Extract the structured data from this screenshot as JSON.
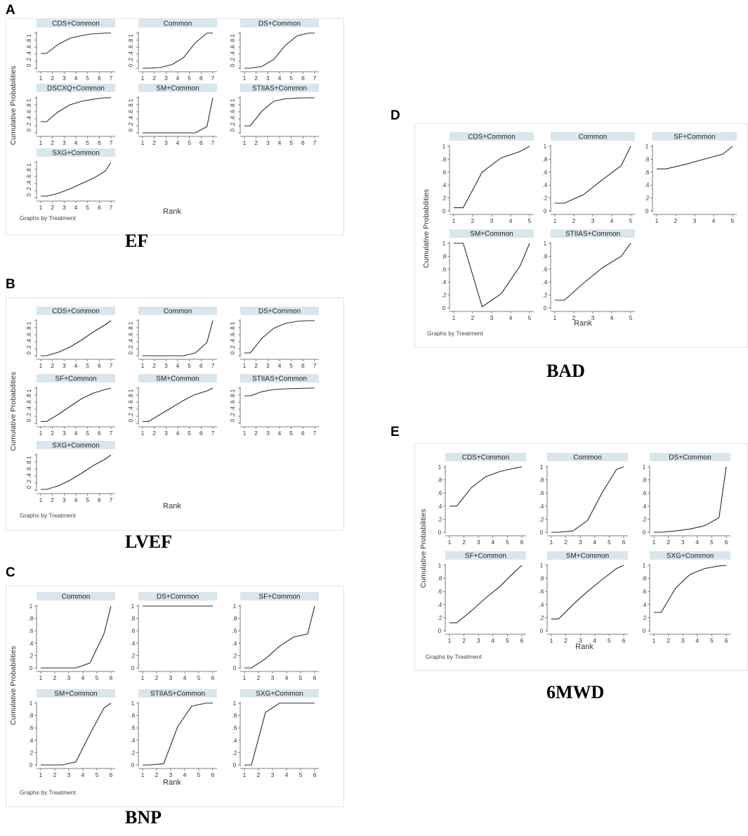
{
  "figure": {
    "shared": {
      "ylabel": "Cumulative Probabilities",
      "xlabel": "Rank",
      "note": "Graphs by Treatment",
      "strip_color": "#d9e6ec",
      "line_color": "#2b2b2b"
    },
    "panels": [
      {
        "letter": "A",
        "caption": "EF",
        "yticks_style": "compact",
        "yticks_label": "0 .2 .4 .6 .8 1",
        "xticks": [
          1,
          2,
          3,
          4,
          5,
          6,
          7
        ],
        "chart_data": {
          "type": "line",
          "x": [
            1,
            1.5,
            2.5,
            3.5,
            4.5,
            5.5,
            6.5,
            7
          ],
          "ylim": [
            0,
            1
          ],
          "series": [
            {
              "name": "CDS+Common",
              "values": [
                0.42,
                0.42,
                0.68,
                0.85,
                0.93,
                0.98,
                1.0,
                1.0
              ]
            },
            {
              "name": "Common",
              "values": [
                0.0,
                0.0,
                0.02,
                0.1,
                0.3,
                0.72,
                1.0,
                1.0
              ]
            },
            {
              "name": "DS+Common",
              "values": [
                0.0,
                0.0,
                0.05,
                0.25,
                0.65,
                0.92,
                1.0,
                1.0
              ]
            },
            {
              "name": "DSCXQ+Common",
              "values": [
                0.32,
                0.32,
                0.6,
                0.8,
                0.9,
                0.96,
                1.0,
                1.0
              ]
            },
            {
              "name": "SM+Common",
              "values": [
                0.0,
                0.0,
                0.0,
                0.0,
                0.0,
                0.0,
                0.18,
                1.0
              ]
            },
            {
              "name": "STIIAS+Common",
              "values": [
                0.2,
                0.2,
                0.62,
                0.9,
                0.97,
                0.99,
                1.0,
                1.0
              ]
            },
            {
              "name": "SXG+Common",
              "values": [
                0.04,
                0.04,
                0.12,
                0.25,
                0.4,
                0.55,
                0.75,
                1.0
              ]
            }
          ]
        }
      },
      {
        "letter": "B",
        "caption": "LVEF",
        "yticks_style": "compact",
        "yticks_label": "0 .2 .4 .6 .8 1",
        "xticks": [
          1,
          2,
          3,
          4,
          5,
          6,
          7
        ],
        "chart_data": {
          "type": "line",
          "x": [
            1,
            1.5,
            2.5,
            3.5,
            4.5,
            5.5,
            6.5,
            7
          ],
          "ylim": [
            0,
            1
          ],
          "series": [
            {
              "name": "CDS+Common",
              "values": [
                0.0,
                0.0,
                0.1,
                0.25,
                0.45,
                0.68,
                0.88,
                1.0
              ]
            },
            {
              "name": "Common",
              "values": [
                0.0,
                0.0,
                0.0,
                0.0,
                0.0,
                0.08,
                0.38,
                1.0
              ]
            },
            {
              "name": "DS+Common",
              "values": [
                0.08,
                0.08,
                0.5,
                0.78,
                0.92,
                0.98,
                1.0,
                1.0
              ]
            },
            {
              "name": "SF+Common",
              "values": [
                0.05,
                0.05,
                0.25,
                0.48,
                0.7,
                0.86,
                0.96,
                1.0
              ]
            },
            {
              "name": "SM+Common",
              "values": [
                0.05,
                0.05,
                0.25,
                0.45,
                0.65,
                0.82,
                0.92,
                1.0
              ]
            },
            {
              "name": "STIIAS+Common",
              "values": [
                0.78,
                0.78,
                0.9,
                0.96,
                0.98,
                0.99,
                1.0,
                1.0
              ]
            },
            {
              "name": "SXG+Common",
              "values": [
                0.02,
                0.02,
                0.12,
                0.28,
                0.48,
                0.7,
                0.88,
                1.0
              ]
            }
          ]
        }
      },
      {
        "letter": "C",
        "caption": "BNP",
        "yticks_style": "spread",
        "yticks_label": "0 .2 .4 .6 .8 1",
        "xticks": [
          1,
          2,
          3,
          4,
          5,
          6
        ],
        "chart_data": {
          "type": "line",
          "x": [
            1,
            1.5,
            2.5,
            3.5,
            4.5,
            5.5,
            6
          ],
          "ylim": [
            0,
            1
          ],
          "series": [
            {
              "name": "Common",
              "values": [
                0.0,
                0.0,
                0.0,
                0.0,
                0.08,
                0.55,
                1.0
              ]
            },
            {
              "name": "DS+Common",
              "values": [
                1.0,
                1.0,
                1.0,
                1.0,
                1.0,
                1.0,
                1.0
              ]
            },
            {
              "name": "SF+Common",
              "values": [
                0.0,
                0.0,
                0.15,
                0.35,
                0.5,
                0.55,
                1.0
              ]
            },
            {
              "name": "SM+Common",
              "values": [
                0.0,
                0.0,
                0.0,
                0.05,
                0.5,
                0.92,
                1.0
              ]
            },
            {
              "name": "STIIAS+Common",
              "values": [
                0.0,
                0.0,
                0.02,
                0.62,
                0.95,
                1.0,
                1.0
              ]
            },
            {
              "name": "SXG+Common",
              "values": [
                0.0,
                0.0,
                0.85,
                1.0,
                1.0,
                1.0,
                1.0
              ]
            }
          ]
        }
      },
      {
        "letter": "D",
        "caption": "BAD",
        "yticks_style": "spread",
        "yticks_label": "0 .2 .4 .6 .8 1",
        "xticks": [
          1,
          2,
          3,
          4,
          5
        ],
        "chart_data": {
          "type": "line",
          "x": [
            1,
            1.5,
            2.5,
            3.5,
            4.5,
            5
          ],
          "ylim": [
            0,
            1
          ],
          "series": [
            {
              "name": "CDS+Common",
              "values": [
                0.05,
                0.05,
                0.6,
                0.82,
                0.92,
                1.0
              ]
            },
            {
              "name": "Common",
              "values": [
                0.12,
                0.12,
                0.25,
                0.48,
                0.7,
                1.0
              ]
            },
            {
              "name": "SF+Common",
              "values": [
                0.65,
                0.65,
                0.72,
                0.8,
                0.88,
                1.0
              ]
            },
            {
              "name": "SM+Common",
              "values": [
                1.0,
                1.0,
                0.02,
                0.22,
                0.65,
                1.0
              ]
            },
            {
              "name": "STIIAS+Common",
              "values": [
                0.12,
                0.12,
                0.38,
                0.62,
                0.8,
                1.0
              ]
            }
          ]
        }
      },
      {
        "letter": "E",
        "caption": "6MWD",
        "yticks_style": "spread",
        "yticks_label": "0 .2 .4 .6 .8 1",
        "xticks": [
          1,
          2,
          3,
          4,
          5,
          6
        ],
        "chart_data": {
          "type": "line",
          "x": [
            1,
            1.5,
            2.5,
            3.5,
            4.5,
            5.5,
            6
          ],
          "ylim": [
            0,
            1
          ],
          "series": [
            {
              "name": "CDS+Common",
              "values": [
                0.4,
                0.4,
                0.68,
                0.85,
                0.93,
                0.98,
                1.0
              ]
            },
            {
              "name": "Common",
              "values": [
                0.0,
                0.0,
                0.02,
                0.18,
                0.6,
                0.96,
                1.0
              ]
            },
            {
              "name": "DS+Common",
              "values": [
                0.0,
                0.0,
                0.02,
                0.05,
                0.1,
                0.22,
                1.0
              ]
            },
            {
              "name": "SF+Common",
              "values": [
                0.12,
                0.12,
                0.3,
                0.5,
                0.68,
                0.9,
                1.0
              ]
            },
            {
              "name": "SM+Common",
              "values": [
                0.18,
                0.18,
                0.4,
                0.6,
                0.78,
                0.95,
                1.0
              ]
            },
            {
              "name": "SXG+Common",
              "values": [
                0.28,
                0.28,
                0.65,
                0.86,
                0.95,
                0.99,
                1.0
              ]
            }
          ]
        }
      }
    ]
  }
}
